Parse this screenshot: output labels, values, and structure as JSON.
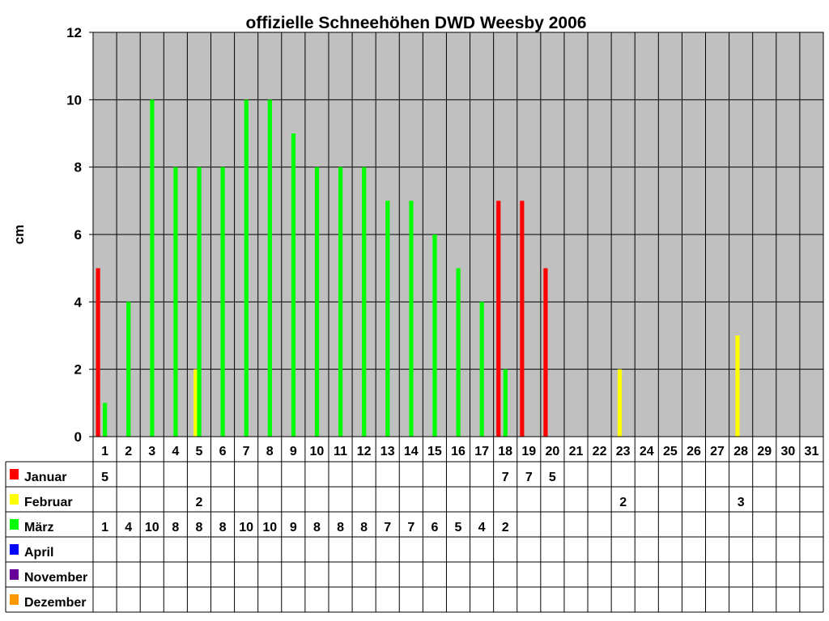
{
  "chart_data": {
    "type": "bar",
    "title": "offizielle Schneehöhen DWD Weesby 2006",
    "ylabel": "cm",
    "xlabel": "",
    "ylim": [
      0,
      12
    ],
    "yticks": [
      "0",
      "2",
      "4",
      "6",
      "8",
      "10",
      "12"
    ],
    "categories": [
      "1",
      "2",
      "3",
      "4",
      "5",
      "6",
      "7",
      "8",
      "9",
      "10",
      "11",
      "12",
      "13",
      "14",
      "15",
      "16",
      "17",
      "18",
      "19",
      "20",
      "21",
      "22",
      "23",
      "24",
      "25",
      "26",
      "27",
      "28",
      "29",
      "30",
      "31"
    ],
    "grid": true,
    "legend": "data table below chart",
    "plot_background": "#c0c0c0",
    "series": [
      {
        "name": "Januar",
        "color": "#ff0000",
        "values": [
          5,
          null,
          null,
          null,
          null,
          null,
          null,
          null,
          null,
          null,
          null,
          null,
          null,
          null,
          null,
          null,
          null,
          7,
          7,
          5,
          null,
          null,
          null,
          null,
          null,
          null,
          null,
          null,
          null,
          null,
          null
        ]
      },
      {
        "name": "Februar",
        "color": "#ffff00",
        "values": [
          null,
          null,
          null,
          null,
          2,
          null,
          null,
          null,
          null,
          null,
          null,
          null,
          null,
          null,
          null,
          null,
          null,
          null,
          null,
          null,
          null,
          null,
          2,
          null,
          null,
          null,
          null,
          3,
          null,
          null,
          null
        ]
      },
      {
        "name": "März",
        "color": "#00ff00",
        "values": [
          1,
          4,
          10,
          8,
          8,
          8,
          10,
          10,
          9,
          8,
          8,
          8,
          7,
          7,
          6,
          5,
          4,
          2,
          null,
          null,
          null,
          null,
          null,
          null,
          null,
          null,
          null,
          null,
          null,
          null,
          null
        ]
      },
      {
        "name": "April",
        "color": "#0000ff",
        "values": [
          null,
          null,
          null,
          null,
          null,
          null,
          null,
          null,
          null,
          null,
          null,
          null,
          null,
          null,
          null,
          null,
          null,
          null,
          null,
          null,
          null,
          null,
          null,
          null,
          null,
          null,
          null,
          null,
          null,
          null,
          null
        ]
      },
      {
        "name": "November",
        "color": "#660099",
        "values": [
          null,
          null,
          null,
          null,
          null,
          null,
          null,
          null,
          null,
          null,
          null,
          null,
          null,
          null,
          null,
          null,
          null,
          null,
          null,
          null,
          null,
          null,
          null,
          null,
          null,
          null,
          null,
          null,
          null,
          null,
          null
        ]
      },
      {
        "name": "Dezember",
        "color": "#ff9900",
        "values": [
          null,
          null,
          null,
          null,
          null,
          null,
          null,
          null,
          null,
          null,
          null,
          null,
          null,
          null,
          null,
          null,
          null,
          null,
          null,
          null,
          null,
          null,
          null,
          null,
          null,
          null,
          null,
          null,
          null,
          null,
          null
        ]
      }
    ]
  }
}
